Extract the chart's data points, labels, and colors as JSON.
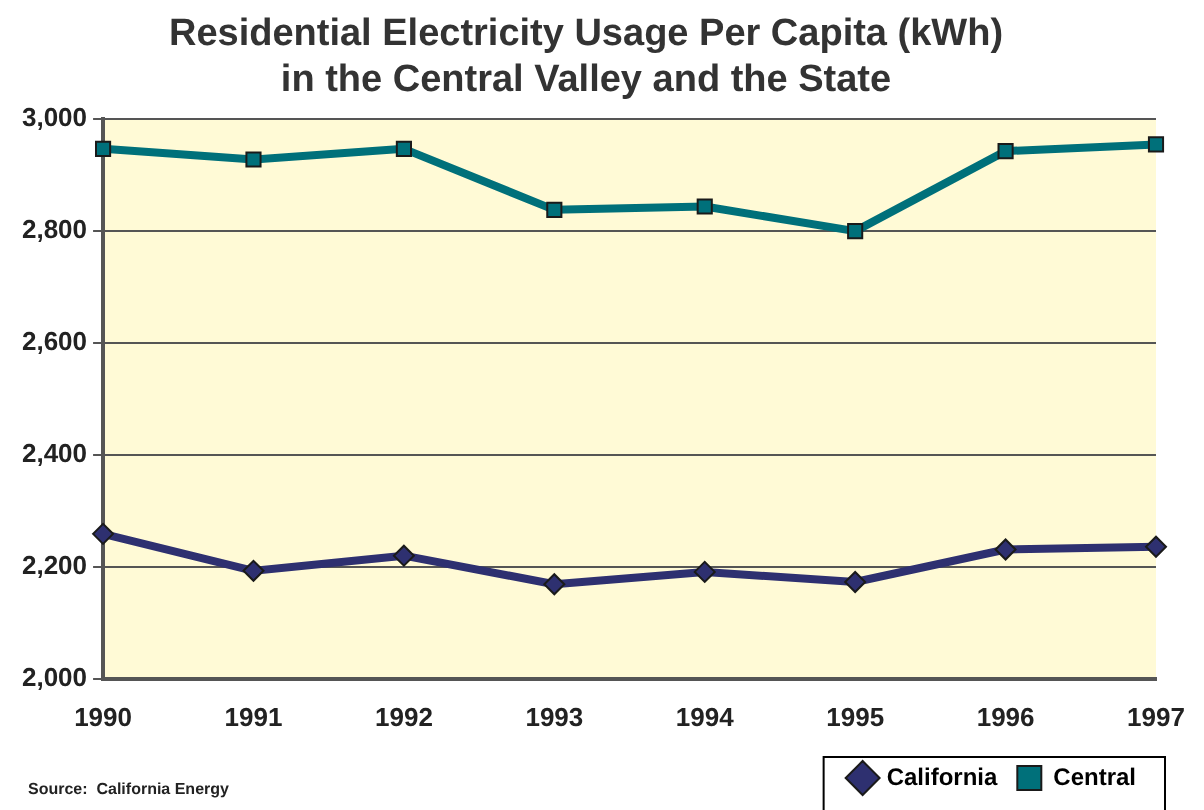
{
  "chart_data": {
    "type": "line",
    "title": "Residential Electricity Usage Per Capita (kWh)\nin the Central Valley and the State",
    "categories": [
      "1990",
      "1991",
      "1992",
      "1993",
      "1994",
      "1995",
      "1996",
      "1997"
    ],
    "series": [
      {
        "name": "California",
        "color": "#2e3070",
        "marker": "diamond",
        "values": [
          2259,
          2193,
          2220,
          2169,
          2191,
          2173,
          2231,
          2236
        ]
      },
      {
        "name": "Central",
        "color": "#00707a",
        "marker": "square",
        "values": [
          2947,
          2928,
          2947,
          2838,
          2844,
          2800,
          2943,
          2955
        ]
      }
    ],
    "ylim": [
      2000,
      3000
    ],
    "yticks": [
      {
        "value": 2000,
        "label": "2,000"
      },
      {
        "value": 2200,
        "label": "2,200"
      },
      {
        "value": 2400,
        "label": "2,400"
      },
      {
        "value": 2600,
        "label": "2,600"
      },
      {
        "value": 2800,
        "label": "2,800"
      },
      {
        "value": 3000,
        "label": "3,000"
      }
    ],
    "grid": "y",
    "legend": "bottom right",
    "line_style": "solid",
    "annotations": [
      "Source:  California Energy"
    ]
  }
}
